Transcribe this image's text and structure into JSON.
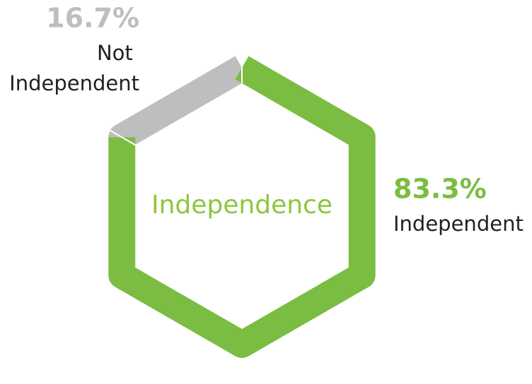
{
  "chart_data": {
    "type": "donut",
    "shape": "hexagon",
    "center_label": "Independence",
    "center_color": "#8cc63f",
    "categories": [
      "Not Independent",
      "Independent"
    ],
    "values": [
      16.7,
      83.3
    ],
    "value_labels": [
      "16.7%",
      "83.3%"
    ],
    "colors": [
      "#bcbec0",
      "#7bbd42"
    ]
  }
}
